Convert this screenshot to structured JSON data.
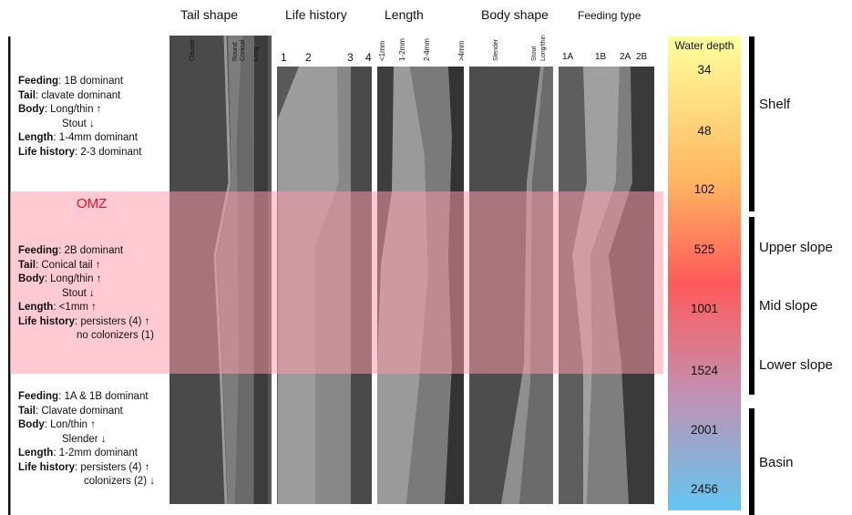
{
  "headers": {
    "tail_shape": "Tail shape",
    "life_history": "Life history",
    "length": "Length",
    "body_shape": "Body shape",
    "feeding_type": "Feeding type"
  },
  "subheaders": {
    "tail": [
      "Clavate",
      "Round",
      "Conical",
      "Long"
    ],
    "life": [
      "1",
      "2",
      "3",
      "4"
    ],
    "length": [
      "<1mm",
      "1-2mm",
      "2-4mm",
      ">4mm"
    ],
    "body": [
      "Slender",
      "Stout",
      "Long/thin"
    ],
    "feeding": [
      "1A",
      "1B",
      "2A",
      "2B"
    ]
  },
  "water_depth": {
    "title": "Water depth",
    "values": [
      "34",
      "48",
      "102",
      "525",
      "1001",
      "1524",
      "2001",
      "2456"
    ]
  },
  "zones": [
    "Shelf",
    "Upper slope",
    "Mid slope",
    "Lower slope",
    "Basin"
  ],
  "omz_label": "OMZ",
  "notes": {
    "shelf": [
      {
        "k": "Feeding",
        "v": ": 1B dominant"
      },
      {
        "k": "Tail",
        "v": ": clavate dominant"
      },
      {
        "k": "Body",
        "v": ":  Long/thin ↑"
      },
      {
        "k": "",
        "v": "Stout ↓",
        "indent": 48
      },
      {
        "k": "Length",
        "v": ": 1-4mm dominant"
      },
      {
        "k": "Life history",
        "v": ":  2-3 dominant"
      }
    ],
    "omz": [
      {
        "k": "Feeding",
        "v": ": 2B dominant"
      },
      {
        "k": "Tail",
        "v": ": Conical tail ↑"
      },
      {
        "k": "Body",
        "v": ": Long/thin ↑"
      },
      {
        "k": "",
        "v": "Stout ↓",
        "indent": 48
      },
      {
        "k": "Length",
        "v": ": <1mm ↑"
      },
      {
        "k": "Life history",
        "v": ":  persisters (4) ↑"
      },
      {
        "k": "",
        "v": "no colonizers (1)",
        "indent": 64
      }
    ],
    "basin": [
      {
        "k": "Feeding",
        "v": ": 1A & 1B dominant"
      },
      {
        "k": "Tail",
        "v": ": Clavate  dominant"
      },
      {
        "k": "Body",
        "v": ": Lon/thin ↑"
      },
      {
        "k": "",
        "v": "Slender ↓",
        "indent": 48
      },
      {
        "k": "Length",
        "v": ": 1-2mm dominant"
      },
      {
        "k": "Life history",
        "v": ":  persisters (4) ↑"
      },
      {
        "k": "",
        "v": "colonizers (2) ↓",
        "indent": 72
      }
    ]
  },
  "colors": {
    "omz_band": "#ff9aa6",
    "depth_gradient": [
      "#ffff9e",
      "#ffb760",
      "#ff5a5a",
      "#c48fb0",
      "#62c7f3"
    ]
  }
}
